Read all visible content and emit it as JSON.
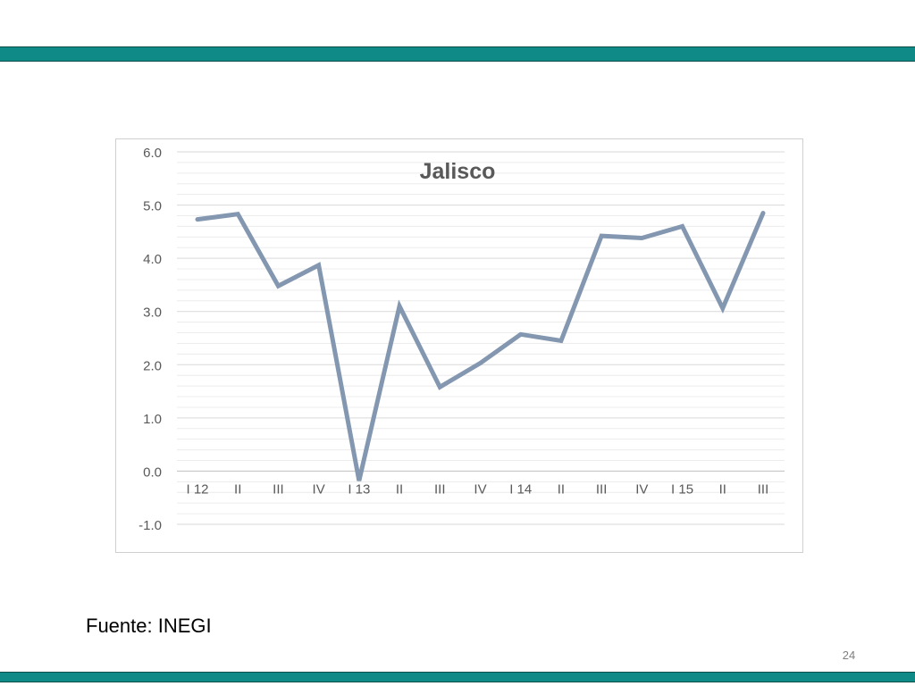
{
  "source": "Fuente: INEGI",
  "page_number": "24",
  "colors": {
    "accent_bar": "#0f8a86",
    "series_line": "#8497b0"
  },
  "chart_data": {
    "type": "line",
    "title": "Jalisco",
    "xlabel": "",
    "ylabel": "",
    "categories": [
      "I 12",
      "II",
      "III",
      "IV",
      "I 13",
      "II",
      "III",
      "IV",
      "I 14",
      "II",
      "III",
      "IV",
      "I 15",
      "II",
      "III"
    ],
    "series": [
      {
        "values": [
          4.73,
          4.83,
          3.48,
          3.87,
          -0.18,
          3.1,
          1.58,
          2.03,
          2.57,
          2.45,
          4.42,
          4.38,
          4.6,
          3.06,
          4.85
        ]
      }
    ],
    "ylim": [
      -1.0,
      6.0
    ],
    "yticks": [
      "6.0",
      "5.0",
      "4.0",
      "3.0",
      "2.0",
      "1.0",
      "0.0",
      "-1.0"
    ],
    "grid": true,
    "legend": "none"
  }
}
